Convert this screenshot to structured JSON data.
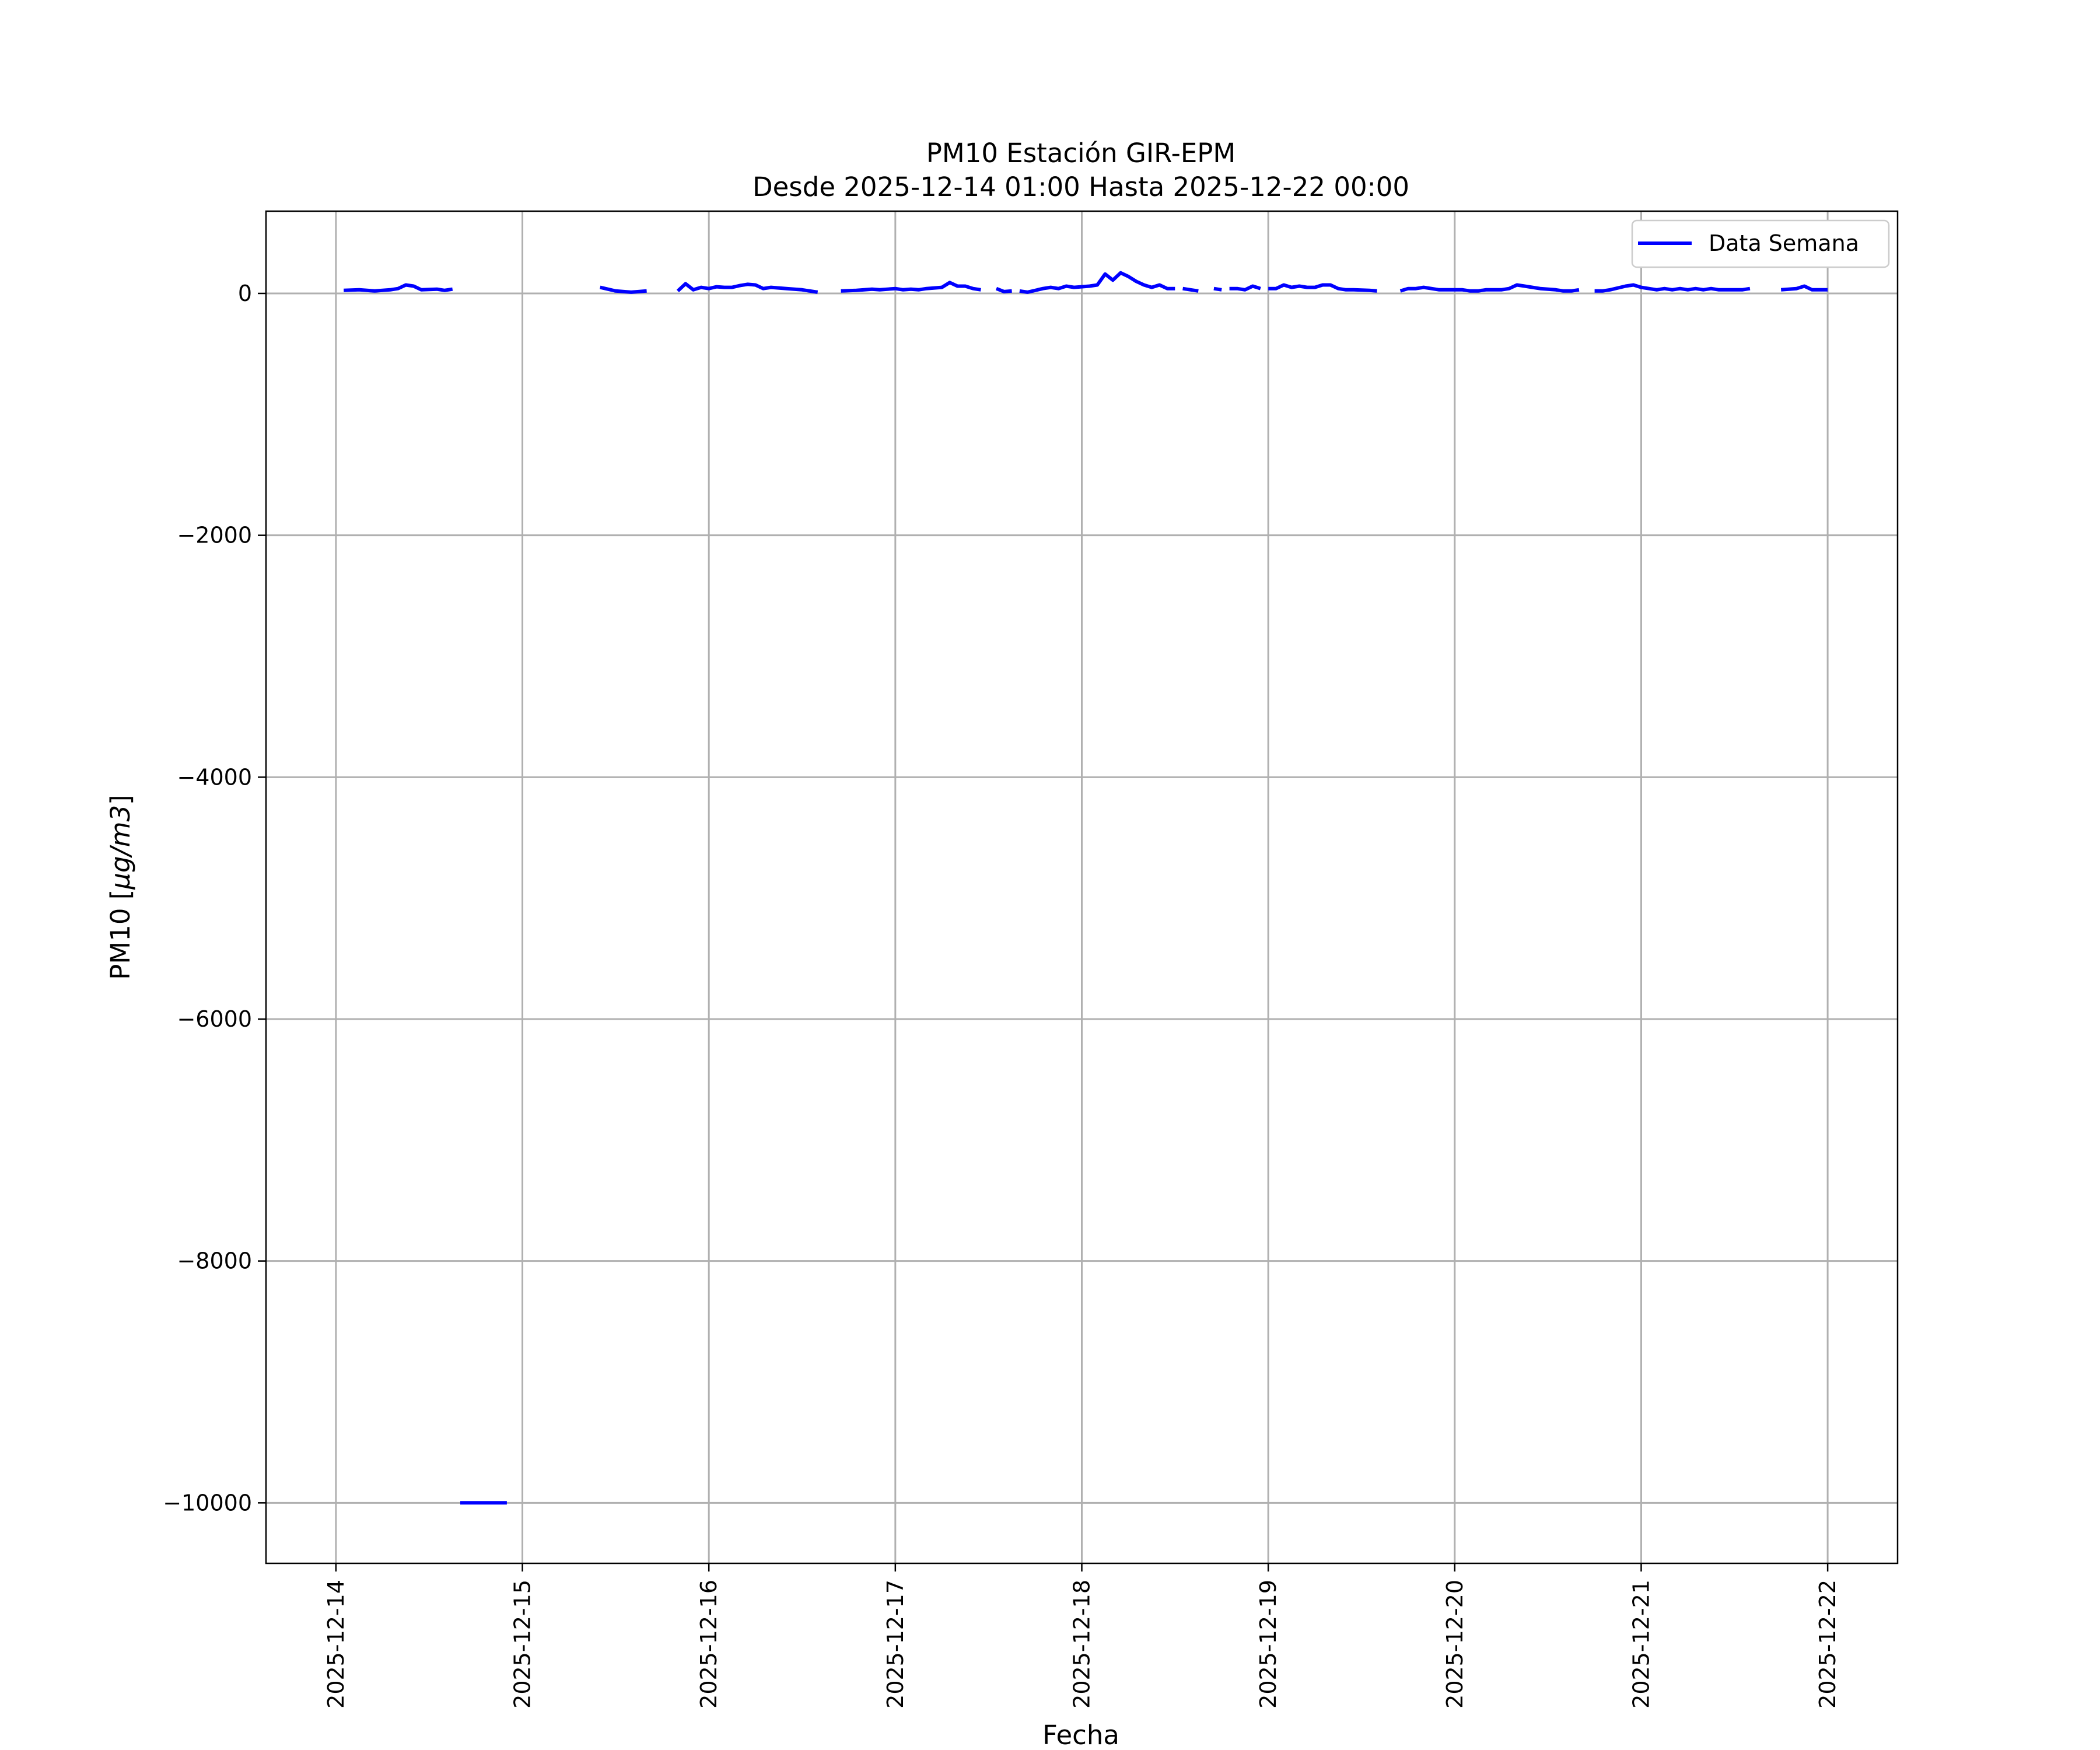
{
  "chart_data": {
    "type": "line",
    "title": "PM10 Estación GIR-EPM",
    "subtitle": "Desde 2025-12-14 01:00 Hasta 2025-12-22 00:00",
    "xlabel": "Fecha",
    "ylabel_prefix": "PM10 [",
    "ylabel_unit": "μg/m3",
    "ylabel_suffix": "]",
    "x_ticks": [
      "2025-12-14",
      "2025-12-15",
      "2025-12-16",
      "2025-12-17",
      "2025-12-18",
      "2025-12-19",
      "2025-12-20",
      "2025-12-21",
      "2025-12-22"
    ],
    "y_ticks": [
      0,
      -2000,
      -4000,
      -6000,
      -8000,
      -10000
    ],
    "y_tick_labels": [
      "0",
      "−2000",
      "−4000",
      "−6000",
      "−8000",
      "−10000"
    ],
    "xlim": [
      "2025-12-13 15:00",
      "2025-12-22 09:00"
    ],
    "ylim": [
      -10500,
      680
    ],
    "grid": true,
    "legend": {
      "placement": "top-right",
      "entries": [
        "Data Semana"
      ]
    },
    "series": [
      {
        "name": "Data Semana",
        "color": "#0000ff",
        "segments": [
          [
            [
              "2025-12-14 01:00",
              25
            ],
            [
              "2025-12-14 03:00",
              30
            ],
            [
              "2025-12-14 05:00",
              20
            ],
            [
              "2025-12-14 07:00",
              30
            ],
            [
              "2025-12-14 08:00",
              40
            ],
            [
              "2025-12-14 09:00",
              70
            ],
            [
              "2025-12-14 10:00",
              60
            ],
            [
              "2025-12-14 11:00",
              30
            ],
            [
              "2025-12-14 13:00",
              35
            ],
            [
              "2025-12-14 14:00",
              25
            ],
            [
              "2025-12-14 15:00",
              35
            ]
          ],
          [
            [
              "2025-12-14 16:00",
              -10000
            ],
            [
              "2025-12-14 22:00",
              -10000
            ]
          ],
          [
            [
              "2025-12-15 10:00",
              50
            ],
            [
              "2025-12-15 12:00",
              20
            ],
            [
              "2025-12-15 14:00",
              10
            ],
            [
              "2025-12-15 16:00",
              20
            ]
          ],
          [
            [
              "2025-12-15 20:00",
              20
            ],
            [
              "2025-12-15 21:00",
              80
            ],
            [
              "2025-12-15 22:00",
              30
            ],
            [
              "2025-12-15 23:00",
              50
            ],
            [
              "2025-12-16 00:00",
              40
            ],
            [
              "2025-12-16 01:00",
              55
            ],
            [
              "2025-12-16 02:00",
              50
            ],
            [
              "2025-12-16 03:00",
              50
            ],
            [
              "2025-12-16 04:00",
              65
            ],
            [
              "2025-12-16 05:00",
              75
            ],
            [
              "2025-12-16 06:00",
              70
            ],
            [
              "2025-12-16 07:00",
              40
            ],
            [
              "2025-12-16 08:00",
              50
            ],
            [
              "2025-12-16 10:00",
              40
            ],
            [
              "2025-12-16 12:00",
              30
            ],
            [
              "2025-12-16 14:00",
              10
            ]
          ],
          [
            [
              "2025-12-16 17:00",
              20
            ],
            [
              "2025-12-16 19:00",
              25
            ],
            [
              "2025-12-16 21:00",
              35
            ],
            [
              "2025-12-16 22:00",
              30
            ],
            [
              "2025-12-17 00:00",
              40
            ],
            [
              "2025-12-17 01:00",
              30
            ],
            [
              "2025-12-17 02:00",
              35
            ],
            [
              "2025-12-17 03:00",
              30
            ],
            [
              "2025-12-17 04:00",
              40
            ],
            [
              "2025-12-17 06:00",
              50
            ],
            [
              "2025-12-17 07:00",
              90
            ],
            [
              "2025-12-17 08:00",
              60
            ],
            [
              "2025-12-17 09:00",
              60
            ],
            [
              "2025-12-17 10:00",
              40
            ],
            [
              "2025-12-17 11:00",
              30
            ]
          ],
          [
            [
              "2025-12-17 13:00",
              40
            ],
            [
              "2025-12-17 14:00",
              15
            ],
            [
              "2025-12-17 15:00",
              20
            ]
          ],
          [
            [
              "2025-12-17 16:00",
              20
            ],
            [
              "2025-12-17 17:00",
              10
            ],
            [
              "2025-12-17 19:00",
              40
            ],
            [
              "2025-12-17 20:00",
              50
            ],
            [
              "2025-12-17 21:00",
              40
            ],
            [
              "2025-12-17 22:00",
              60
            ],
            [
              "2025-12-17 23:00",
              50
            ],
            [
              "2025-12-18 01:00",
              60
            ],
            [
              "2025-12-18 02:00",
              70
            ],
            [
              "2025-12-18 03:00",
              160
            ],
            [
              "2025-12-18 04:00",
              110
            ],
            [
              "2025-12-18 05:00",
              170
            ],
            [
              "2025-12-18 06:00",
              140
            ],
            [
              "2025-12-18 07:00",
              100
            ],
            [
              "2025-12-18 08:00",
              70
            ],
            [
              "2025-12-18 09:00",
              50
            ],
            [
              "2025-12-18 10:00",
              70
            ],
            [
              "2025-12-18 11:00",
              40
            ],
            [
              "2025-12-18 12:00",
              40
            ]
          ],
          [
            [
              "2025-12-18 13:00",
              40
            ],
            [
              "2025-12-18 14:00",
              30
            ],
            [
              "2025-12-18 15:00",
              20
            ]
          ],
          [
            [
              "2025-12-18 17:00",
              40
            ],
            [
              "2025-12-18 18:00",
              30
            ]
          ],
          [
            [
              "2025-12-18 19:00",
              40
            ],
            [
              "2025-12-18 20:00",
              40
            ],
            [
              "2025-12-18 21:00",
              30
            ],
            [
              "2025-12-18 22:00",
              60
            ],
            [
              "2025-12-18 23:00",
              40
            ]
          ],
          [
            [
              "2025-12-19 00:00",
              40
            ],
            [
              "2025-12-19 01:00",
              40
            ],
            [
              "2025-12-19 02:00",
              70
            ],
            [
              "2025-12-19 03:00",
              50
            ],
            [
              "2025-12-19 04:00",
              60
            ],
            [
              "2025-12-19 05:00",
              50
            ],
            [
              "2025-12-19 06:00",
              50
            ],
            [
              "2025-12-19 07:00",
              70
            ],
            [
              "2025-12-19 08:00",
              70
            ],
            [
              "2025-12-19 09:00",
              40
            ],
            [
              "2025-12-19 10:00",
              30
            ],
            [
              "2025-12-19 11:00",
              30
            ],
            [
              "2025-12-19 13:00",
              25
            ],
            [
              "2025-12-19 14:00",
              20
            ]
          ],
          [
            [
              "2025-12-19 17:00",
              20
            ],
            [
              "2025-12-19 18:00",
              40
            ],
            [
              "2025-12-19 19:00",
              40
            ],
            [
              "2025-12-19 20:00",
              50
            ],
            [
              "2025-12-19 21:00",
              40
            ],
            [
              "2025-12-19 22:00",
              30
            ],
            [
              "2025-12-19 23:00",
              30
            ],
            [
              "2025-12-20 01:00",
              30
            ],
            [
              "2025-12-20 02:00",
              20
            ],
            [
              "2025-12-20 03:00",
              20
            ],
            [
              "2025-12-20 04:00",
              30
            ],
            [
              "2025-12-20 06:00",
              30
            ],
            [
              "2025-12-20 07:00",
              40
            ],
            [
              "2025-12-20 08:00",
              70
            ],
            [
              "2025-12-20 09:00",
              60
            ],
            [
              "2025-12-20 10:00",
              50
            ],
            [
              "2025-12-20 11:00",
              40
            ],
            [
              "2025-12-20 13:00",
              30
            ],
            [
              "2025-12-20 14:00",
              20
            ],
            [
              "2025-12-20 15:00",
              20
            ],
            [
              "2025-12-20 16:00",
              30
            ]
          ],
          [
            [
              "2025-12-20 18:00",
              20
            ],
            [
              "2025-12-20 19:00",
              20
            ],
            [
              "2025-12-20 20:00",
              30
            ],
            [
              "2025-12-20 22:00",
              60
            ],
            [
              "2025-12-20 23:00",
              70
            ],
            [
              "2025-12-21 00:00",
              50
            ],
            [
              "2025-12-21 01:00",
              40
            ],
            [
              "2025-12-21 02:00",
              30
            ],
            [
              "2025-12-21 03:00",
              40
            ],
            [
              "2025-12-21 04:00",
              30
            ],
            [
              "2025-12-21 05:00",
              40
            ],
            [
              "2025-12-21 06:00",
              30
            ],
            [
              "2025-12-21 07:00",
              40
            ],
            [
              "2025-12-21 08:00",
              30
            ],
            [
              "2025-12-21 09:00",
              40
            ],
            [
              "2025-12-21 10:00",
              30
            ],
            [
              "2025-12-21 11:00",
              30
            ],
            [
              "2025-12-21 12:00",
              30
            ],
            [
              "2025-12-21 13:00",
              30
            ],
            [
              "2025-12-21 14:00",
              40
            ]
          ],
          [
            [
              "2025-12-21 18:00",
              30
            ],
            [
              "2025-12-21 20:00",
              40
            ],
            [
              "2025-12-21 21:00",
              60
            ],
            [
              "2025-12-21 22:00",
              30
            ],
            [
              "2025-12-21 23:00",
              30
            ],
            [
              "2025-12-22 00:00",
              30
            ]
          ]
        ]
      }
    ]
  }
}
